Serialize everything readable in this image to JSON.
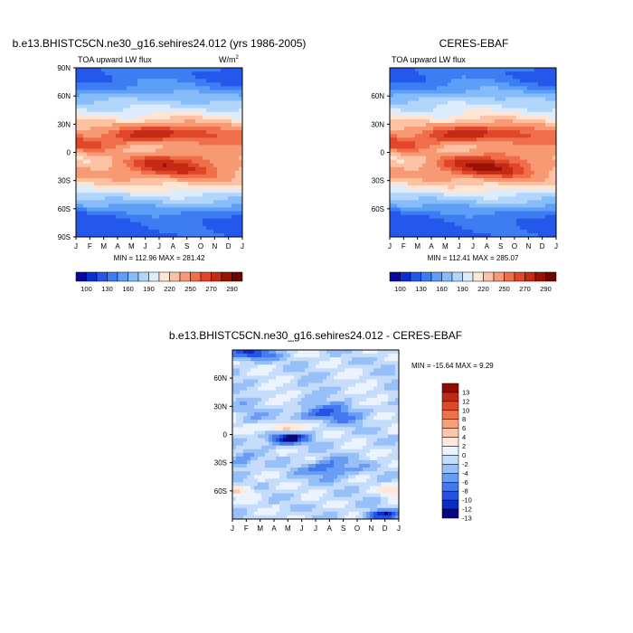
{
  "chart_data": [
    {
      "type": "heatmap",
      "panel": "model",
      "title": "b.e13.BHISTC5CN.ne30_g16.sehires24.012 (yrs 1986-2005)",
      "subtitle_left": "TOA upward LW flux",
      "units_label": "W/m",
      "units_exponent": "2",
      "x_tick_labels": [
        "J",
        "F",
        "M",
        "A",
        "M",
        "J",
        "J",
        "A",
        "S",
        "O",
        "N",
        "D",
        "J"
      ],
      "y_tick_labels": [
        "90N",
        "60N",
        "30N",
        "0",
        "30S",
        "60S",
        "90S"
      ],
      "y_tick_values": [
        90,
        60,
        30,
        0,
        -30,
        -60,
        -90
      ],
      "ylim": [
        -90,
        90
      ],
      "min_max_text": "MIN = 112.96 MAX = 281.42",
      "stats": {
        "min": 112.96,
        "max": 281.42
      },
      "colorbar_labels": [
        "100",
        "130",
        "160",
        "190",
        "220",
        "250",
        "270",
        "290"
      ],
      "colorbar_levels": [
        100,
        115,
        130,
        145,
        160,
        175,
        190,
        205,
        220,
        235,
        250,
        260,
        270,
        280,
        290
      ],
      "field": "toa_lw_model"
    },
    {
      "type": "heatmap",
      "panel": "obs",
      "title": "CERES-EBAF",
      "subtitle_left": "TOA upward LW flux",
      "x_tick_labels": [
        "J",
        "F",
        "M",
        "A",
        "M",
        "J",
        "J",
        "A",
        "S",
        "O",
        "N",
        "D",
        "J"
      ],
      "y_tick_labels": [
        "60N",
        "30N",
        "0",
        "30S",
        "60S"
      ],
      "y_tick_values": [
        60,
        30,
        0,
        -30,
        -60
      ],
      "ylim": [
        -90,
        90
      ],
      "min_max_text": "MIN = 112.41 MAX = 285.07",
      "stats": {
        "min": 112.41,
        "max": 285.07
      },
      "colorbar_labels": [
        "100",
        "130",
        "160",
        "190",
        "220",
        "250",
        "270",
        "290"
      ],
      "colorbar_levels": [
        100,
        115,
        130,
        145,
        160,
        175,
        190,
        205,
        220,
        235,
        250,
        260,
        270,
        280,
        290
      ],
      "field": "toa_lw_obs"
    },
    {
      "type": "heatmap",
      "panel": "difference",
      "title": "b.e13.BHISTC5CN.ne30_g16.sehires24.012 - CERES-EBAF",
      "x_tick_labels": [
        "J",
        "F",
        "M",
        "A",
        "M",
        "J",
        "J",
        "A",
        "S",
        "O",
        "N",
        "D",
        "J"
      ],
      "y_tick_labels": [
        "60N",
        "30N",
        "0",
        "30S",
        "60S"
      ],
      "y_tick_values": [
        60,
        30,
        0,
        -30,
        -60
      ],
      "ylim": [
        -90,
        90
      ],
      "min_max_text": "MIN = -15.64 MAX =   9.29",
      "stats": {
        "min": -15.64,
        "max": 9.29
      },
      "colorbar_labels": [
        "13",
        "12",
        "10",
        "8",
        "6",
        "4",
        "2",
        "0",
        "-2",
        "-4",
        "-6",
        "-8",
        "-10",
        "-12",
        "-13"
      ],
      "colorbar_levels": [
        -13,
        -12,
        -10,
        -8,
        -6,
        -4,
        -2,
        0,
        2,
        4,
        6,
        8,
        10,
        12,
        13
      ],
      "field": "toa_lw_diff"
    }
  ],
  "colors": {
    "seq_palette": [
      "#08089a",
      "#0c2ed6",
      "#2458ea",
      "#3c7ef2",
      "#5d9ef6",
      "#85bcf9",
      "#b2d6fb",
      "#dcecfd",
      "#fde6d6",
      "#fbc2a4",
      "#f79a74",
      "#f06e4a",
      "#e04728",
      "#c42a14",
      "#9a1206",
      "#6e0600"
    ],
    "diff_palette": [
      "#08087a",
      "#0c2cc8",
      "#2652e4",
      "#4478ee",
      "#6b9cf4",
      "#98c0f8",
      "#c5dcfb",
      "#eaf3fe",
      "#fdeadd",
      "#fbc7aa",
      "#f69f79",
      "#ed724c",
      "#dc4a2a",
      "#bf2a14",
      "#8f0c04"
    ]
  }
}
